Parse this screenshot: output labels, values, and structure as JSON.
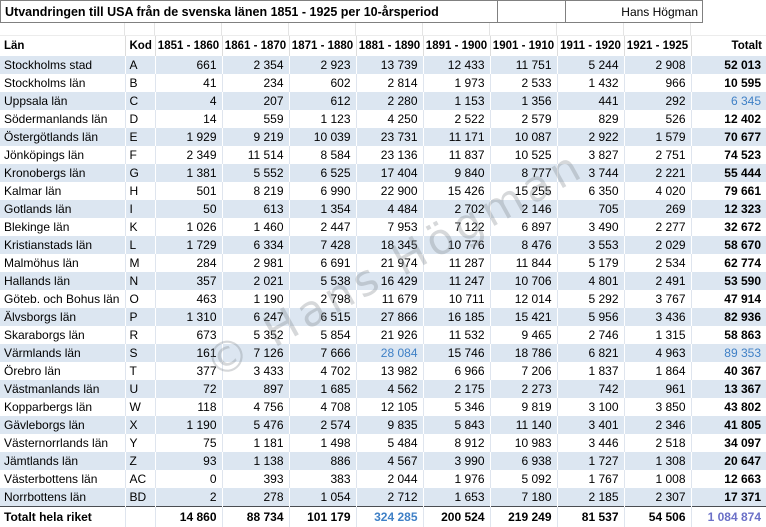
{
  "title": "Utvandringen till USA från de svenska länen 1851 - 1925 per 10-årsperiod",
  "author": "Hans Högman",
  "watermark": "© Hans Högman",
  "colors": {
    "stripe_blue": "#dce6f1",
    "highlight_blue": "#3f80c6",
    "grand_total_purple": "#6b70c7"
  },
  "table": {
    "columns": [
      "Län",
      "Kod",
      "1851 - 1860",
      "1861 - 1870",
      "1871 - 1880",
      "1881 - 1890",
      "1891 - 1900",
      "1901 - 1910",
      "1911 - 1920",
      "1921 - 1925",
      "Totalt"
    ],
    "rows": [
      {
        "lan": "Stockholms stad",
        "kod": "A",
        "values": [
          "661",
          "2 354",
          "2 923",
          "13 739",
          "12 433",
          "11 751",
          "5 244",
          "2 908"
        ],
        "total": "52 013"
      },
      {
        "lan": "Stockholms län",
        "kod": "B",
        "values": [
          "41",
          "234",
          "602",
          "2 814",
          "1 973",
          "2 533",
          "1 432",
          "966"
        ],
        "total": "10 595"
      },
      {
        "lan": "Uppsala län",
        "kod": "C",
        "values": [
          "4",
          "207",
          "612",
          "2 280",
          "1 153",
          "1 356",
          "441",
          "292"
        ],
        "total": "6 345",
        "total_style": "blue"
      },
      {
        "lan": "Södermanlands län",
        "kod": "D",
        "values": [
          "14",
          "559",
          "1 123",
          "4 250",
          "2 522",
          "2 579",
          "829",
          "526"
        ],
        "total": "12 402"
      },
      {
        "lan": "Östergötlands län",
        "kod": "E",
        "values": [
          "1 929",
          "9 219",
          "10 039",
          "23 731",
          "11 171",
          "10 087",
          "2 922",
          "1 579"
        ],
        "total": "70 677"
      },
      {
        "lan": "Jönköpings län",
        "kod": "F",
        "values": [
          "2 349",
          "11 514",
          "8 584",
          "23 136",
          "11 837",
          "10 525",
          "3 827",
          "2 751"
        ],
        "total": "74 523"
      },
      {
        "lan": "Kronobergs län",
        "kod": "G",
        "values": [
          "1 381",
          "5 552",
          "6 525",
          "17 404",
          "9 840",
          "8 777",
          "3 744",
          "2 221"
        ],
        "total": "55 444"
      },
      {
        "lan": "Kalmar län",
        "kod": "H",
        "values": [
          "501",
          "8 219",
          "6 990",
          "22 900",
          "15 426",
          "15 255",
          "6 350",
          "4 020"
        ],
        "total": "79 661"
      },
      {
        "lan": "Gotlands län",
        "kod": "I",
        "values": [
          "50",
          "613",
          "1 354",
          "4 484",
          "2 702",
          "2 146",
          "705",
          "269"
        ],
        "total": "12 323"
      },
      {
        "lan": "Blekinge län",
        "kod": "K",
        "values": [
          "1 026",
          "1 460",
          "2 447",
          "7 953",
          "7 122",
          "6 897",
          "3 490",
          "2 277"
        ],
        "total": "32 672"
      },
      {
        "lan": "Kristianstads län",
        "kod": "L",
        "values": [
          "1 729",
          "6 334",
          "7 428",
          "18 345",
          "10 776",
          "8 476",
          "3 553",
          "2 029"
        ],
        "total": "58 670"
      },
      {
        "lan": "Malmöhus län",
        "kod": "M",
        "values": [
          "284",
          "2 981",
          "6 691",
          "21 974",
          "11 287",
          "11 844",
          "5 179",
          "2 534"
        ],
        "total": "62 774"
      },
      {
        "lan": "Hallands län",
        "kod": "N",
        "values": [
          "357",
          "2 021",
          "5 538",
          "16 429",
          "11 247",
          "10 706",
          "4 801",
          "2 491"
        ],
        "total": "53 590"
      },
      {
        "lan": "Göteb. och Bohus län",
        "kod": "O",
        "values": [
          "463",
          "1 190",
          "2 798",
          "11 679",
          "10 711",
          "12 014",
          "5 292",
          "3 767"
        ],
        "total": "47 914"
      },
      {
        "lan": "Älvsborgs län",
        "kod": "P",
        "values": [
          "1 310",
          "6 247",
          "6 515",
          "27 866",
          "16 185",
          "15 421",
          "5 956",
          "3 436"
        ],
        "total": "82 936"
      },
      {
        "lan": "Skaraborgs län",
        "kod": "R",
        "values": [
          "673",
          "5 352",
          "5 854",
          "21 926",
          "11 532",
          "9 465",
          "2 746",
          "1 315"
        ],
        "total": "58 863"
      },
      {
        "lan": "Värmlands län",
        "kod": "S",
        "values": [
          "161",
          "7 126",
          "7 666",
          "28 084",
          "15 746",
          "18 786",
          "6 821",
          "4 963"
        ],
        "total": "89 353",
        "total_style": "blue",
        "value_styles": {
          "3": "blue"
        }
      },
      {
        "lan": "Örebro län",
        "kod": "T",
        "values": [
          "377",
          "3 433",
          "4 702",
          "13 982",
          "6 966",
          "7 206",
          "1 837",
          "1 864"
        ],
        "total": "40 367"
      },
      {
        "lan": "Västmanlands län",
        "kod": "U",
        "values": [
          "72",
          "897",
          "1 685",
          "4 562",
          "2 175",
          "2 273",
          "742",
          "961"
        ],
        "total": "13 367"
      },
      {
        "lan": "Kopparbergs län",
        "kod": "W",
        "values": [
          "118",
          "4 756",
          "4 708",
          "12 105",
          "5 346",
          "9 819",
          "3 100",
          "3 850"
        ],
        "total": "43 802"
      },
      {
        "lan": "Gävleborgs län",
        "kod": "X",
        "values": [
          "1 190",
          "5 476",
          "2 574",
          "9 835",
          "5 843",
          "11 140",
          "3 401",
          "2 346"
        ],
        "total": "41 805"
      },
      {
        "lan": "Västernorrlands län",
        "kod": "Y",
        "values": [
          "75",
          "1 181",
          "1 498",
          "5 484",
          "8 912",
          "10 983",
          "3 446",
          "2 518"
        ],
        "total": "34 097"
      },
      {
        "lan": "Jämtlands län",
        "kod": "Z",
        "values": [
          "93",
          "1 138",
          "886",
          "4 567",
          "3 990",
          "6 938",
          "1 727",
          "1 308"
        ],
        "total": "20 647"
      },
      {
        "lan": "Västerbottens län",
        "kod": "AC",
        "values": [
          "0",
          "393",
          "383",
          "2 044",
          "1 976",
          "5 092",
          "1 767",
          "1 008"
        ],
        "total": "12 663"
      },
      {
        "lan": "Norrbottens län",
        "kod": "BD",
        "values": [
          "2",
          "278",
          "1 054",
          "2 712",
          "1 653",
          "7 180",
          "2 185",
          "2 307"
        ],
        "total": "17 371"
      }
    ],
    "total_row": {
      "lan": "Totalt hela riket",
      "kod": "",
      "values": [
        "14 860",
        "88 734",
        "101 179",
        "324 285",
        "200 524",
        "219 249",
        "81 537",
        "54 506"
      ],
      "total": "1 084 874",
      "total_style": "purple",
      "value_styles": {
        "3": "blue"
      }
    }
  }
}
